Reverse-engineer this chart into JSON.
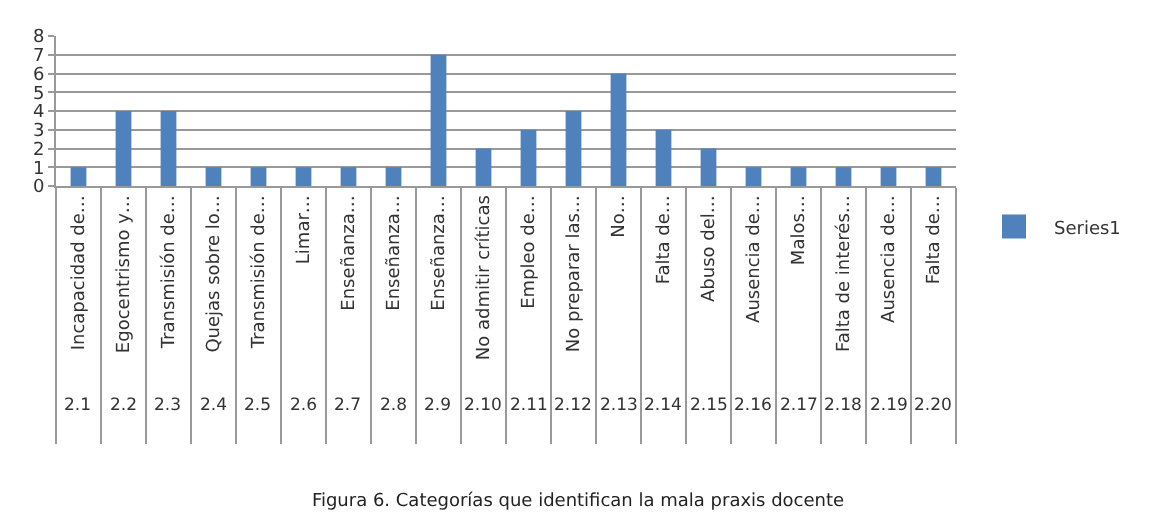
{
  "chart_data": {
    "type": "bar",
    "title": "Figura 6. Categorías que identifican la mala praxis docente",
    "categories": [
      "Incapacidad de…",
      "Egocentrismo y…",
      "Transmisión de…",
      "Quejas sobre lo…",
      "Transmisión de…",
      "Limar…",
      "Enseñanza…",
      "Enseñanza…",
      "Enseñanza…",
      "No admitir críticas",
      "Empleo de…",
      "No preparar las…",
      "No…",
      "Falta de…",
      "Abuso del…",
      "Ausencia de…",
      "Malos…",
      "Falta de interés…",
      "Ausencia de…",
      "Falta de…"
    ],
    "series": [
      {
        "name": "Series1",
        "color": "#4f81bd",
        "values": [
          1,
          4,
          4,
          1,
          1,
          1,
          1,
          1,
          7,
          2,
          3,
          4,
          6,
          3,
          2,
          1,
          1,
          1,
          1,
          1
        ]
      }
    ],
    "ylim": [
      0,
      8
    ],
    "yticks": [
      0,
      1,
      2,
      3,
      4,
      5,
      6,
      7,
      8
    ],
    "grid": "y",
    "legend": "right",
    "annotations": [
      "2.1",
      "2.2",
      "2.3",
      "2.4",
      "2.5",
      "2.6",
      "2.7",
      "2.8",
      "2.9",
      "2.10",
      "2.11",
      "2.12",
      "2.13",
      "2.14",
      "2.15",
      "2.16",
      "2.17",
      "2.18",
      "2.19",
      "2.20"
    ]
  }
}
